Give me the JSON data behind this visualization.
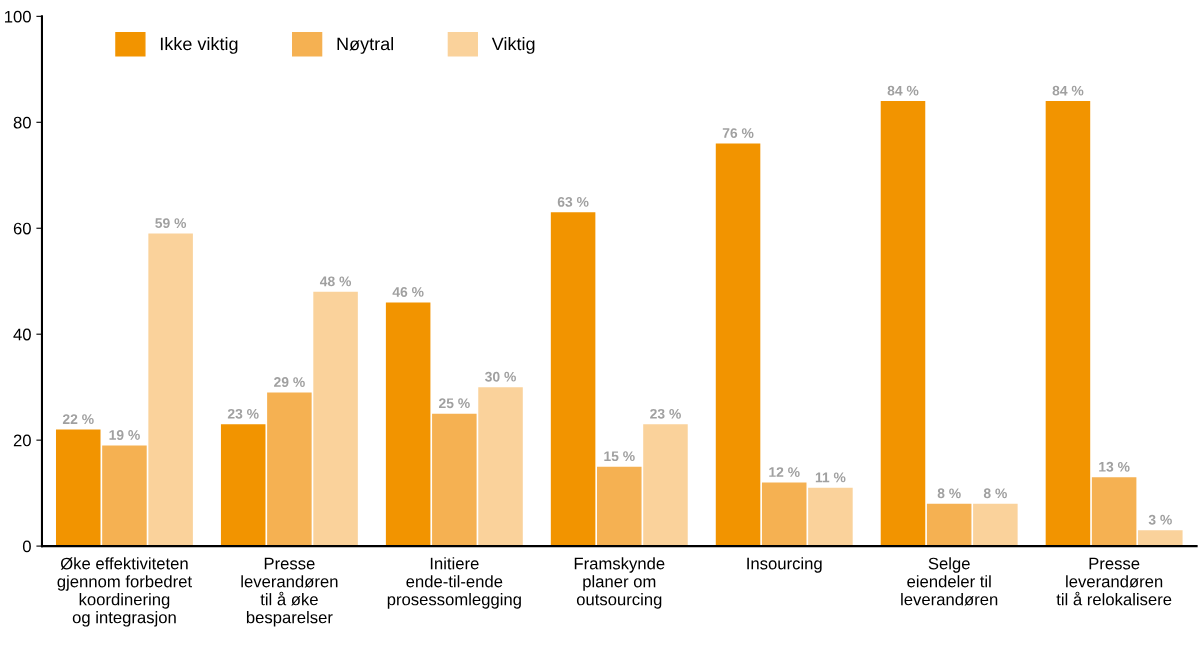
{
  "chart_data": {
    "type": "bar",
    "categories": [
      "Øke effektiviteten\ngjennom forbedret\nkoordinering\nog integrasjon",
      "Presse\nleverandøren\ntil å øke\nbesparelser",
      "Initiere\nende-til-ende\nprosessomlegging",
      "Framskynde\nplaner om\noutsourcing",
      "Insourcing",
      "Selge\neiendeler til\nleverandøren",
      "Presse\nleverandøren\ntil å relokalisere"
    ],
    "series": [
      {
        "name": "Ikke viktig",
        "color": "#f29400",
        "values": [
          22,
          23,
          46,
          63,
          76,
          84,
          84
        ],
        "value_labels": [
          "22 %",
          "23 %",
          "46 %",
          "63 %",
          "76 %",
          "84 %",
          "84 %"
        ]
      },
      {
        "name": "Nøytral",
        "color": "#f5b152",
        "values": [
          19,
          29,
          25,
          15,
          12,
          8,
          13
        ],
        "value_labels": [
          "19 %",
          "29 %",
          "25 %",
          "15 %",
          "12 %",
          "8 %",
          "13 %"
        ]
      },
      {
        "name": "Viktig",
        "color": "#fad29b",
        "values": [
          59,
          48,
          30,
          23,
          11,
          8,
          3
        ],
        "value_labels": [
          "59 %",
          "48 %",
          "30 %",
          "23 %",
          "11 %",
          "8 %",
          "3 %"
        ]
      }
    ],
    "ylim": [
      0,
      100
    ],
    "yticks": [
      0,
      20,
      40,
      60,
      80,
      100
    ],
    "grid": false,
    "legend": "top left"
  }
}
